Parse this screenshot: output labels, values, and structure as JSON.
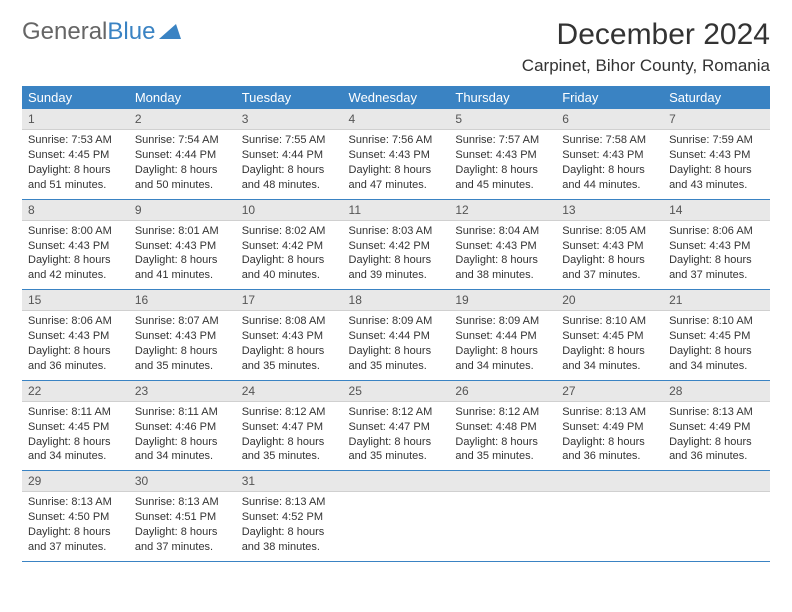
{
  "logo": {
    "text1": "General",
    "text2": "Blue"
  },
  "title": "December 2024",
  "location": "Carpinet, Bihor County, Romania",
  "colors": {
    "header_bg": "#3a83c3",
    "header_fg": "#ffffff",
    "daynum_bg": "#e8e8e8",
    "row_divider": "#3a83c3",
    "page_bg": "#ffffff",
    "text": "#333333"
  },
  "weekdays": [
    "Sunday",
    "Monday",
    "Tuesday",
    "Wednesday",
    "Thursday",
    "Friday",
    "Saturday"
  ],
  "weeks": [
    [
      {
        "n": "1",
        "sr": "Sunrise: 7:53 AM",
        "ss": "Sunset: 4:45 PM",
        "d1": "Daylight: 8 hours",
        "d2": "and 51 minutes."
      },
      {
        "n": "2",
        "sr": "Sunrise: 7:54 AM",
        "ss": "Sunset: 4:44 PM",
        "d1": "Daylight: 8 hours",
        "d2": "and 50 minutes."
      },
      {
        "n": "3",
        "sr": "Sunrise: 7:55 AM",
        "ss": "Sunset: 4:44 PM",
        "d1": "Daylight: 8 hours",
        "d2": "and 48 minutes."
      },
      {
        "n": "4",
        "sr": "Sunrise: 7:56 AM",
        "ss": "Sunset: 4:43 PM",
        "d1": "Daylight: 8 hours",
        "d2": "and 47 minutes."
      },
      {
        "n": "5",
        "sr": "Sunrise: 7:57 AM",
        "ss": "Sunset: 4:43 PM",
        "d1": "Daylight: 8 hours",
        "d2": "and 45 minutes."
      },
      {
        "n": "6",
        "sr": "Sunrise: 7:58 AM",
        "ss": "Sunset: 4:43 PM",
        "d1": "Daylight: 8 hours",
        "d2": "and 44 minutes."
      },
      {
        "n": "7",
        "sr": "Sunrise: 7:59 AM",
        "ss": "Sunset: 4:43 PM",
        "d1": "Daylight: 8 hours",
        "d2": "and 43 minutes."
      }
    ],
    [
      {
        "n": "8",
        "sr": "Sunrise: 8:00 AM",
        "ss": "Sunset: 4:43 PM",
        "d1": "Daylight: 8 hours",
        "d2": "and 42 minutes."
      },
      {
        "n": "9",
        "sr": "Sunrise: 8:01 AM",
        "ss": "Sunset: 4:43 PM",
        "d1": "Daylight: 8 hours",
        "d2": "and 41 minutes."
      },
      {
        "n": "10",
        "sr": "Sunrise: 8:02 AM",
        "ss": "Sunset: 4:42 PM",
        "d1": "Daylight: 8 hours",
        "d2": "and 40 minutes."
      },
      {
        "n": "11",
        "sr": "Sunrise: 8:03 AM",
        "ss": "Sunset: 4:42 PM",
        "d1": "Daylight: 8 hours",
        "d2": "and 39 minutes."
      },
      {
        "n": "12",
        "sr": "Sunrise: 8:04 AM",
        "ss": "Sunset: 4:43 PM",
        "d1": "Daylight: 8 hours",
        "d2": "and 38 minutes."
      },
      {
        "n": "13",
        "sr": "Sunrise: 8:05 AM",
        "ss": "Sunset: 4:43 PM",
        "d1": "Daylight: 8 hours",
        "d2": "and 37 minutes."
      },
      {
        "n": "14",
        "sr": "Sunrise: 8:06 AM",
        "ss": "Sunset: 4:43 PM",
        "d1": "Daylight: 8 hours",
        "d2": "and 37 minutes."
      }
    ],
    [
      {
        "n": "15",
        "sr": "Sunrise: 8:06 AM",
        "ss": "Sunset: 4:43 PM",
        "d1": "Daylight: 8 hours",
        "d2": "and 36 minutes."
      },
      {
        "n": "16",
        "sr": "Sunrise: 8:07 AM",
        "ss": "Sunset: 4:43 PM",
        "d1": "Daylight: 8 hours",
        "d2": "and 35 minutes."
      },
      {
        "n": "17",
        "sr": "Sunrise: 8:08 AM",
        "ss": "Sunset: 4:43 PM",
        "d1": "Daylight: 8 hours",
        "d2": "and 35 minutes."
      },
      {
        "n": "18",
        "sr": "Sunrise: 8:09 AM",
        "ss": "Sunset: 4:44 PM",
        "d1": "Daylight: 8 hours",
        "d2": "and 35 minutes."
      },
      {
        "n": "19",
        "sr": "Sunrise: 8:09 AM",
        "ss": "Sunset: 4:44 PM",
        "d1": "Daylight: 8 hours",
        "d2": "and 34 minutes."
      },
      {
        "n": "20",
        "sr": "Sunrise: 8:10 AM",
        "ss": "Sunset: 4:45 PM",
        "d1": "Daylight: 8 hours",
        "d2": "and 34 minutes."
      },
      {
        "n": "21",
        "sr": "Sunrise: 8:10 AM",
        "ss": "Sunset: 4:45 PM",
        "d1": "Daylight: 8 hours",
        "d2": "and 34 minutes."
      }
    ],
    [
      {
        "n": "22",
        "sr": "Sunrise: 8:11 AM",
        "ss": "Sunset: 4:45 PM",
        "d1": "Daylight: 8 hours",
        "d2": "and 34 minutes."
      },
      {
        "n": "23",
        "sr": "Sunrise: 8:11 AM",
        "ss": "Sunset: 4:46 PM",
        "d1": "Daylight: 8 hours",
        "d2": "and 34 minutes."
      },
      {
        "n": "24",
        "sr": "Sunrise: 8:12 AM",
        "ss": "Sunset: 4:47 PM",
        "d1": "Daylight: 8 hours",
        "d2": "and 35 minutes."
      },
      {
        "n": "25",
        "sr": "Sunrise: 8:12 AM",
        "ss": "Sunset: 4:47 PM",
        "d1": "Daylight: 8 hours",
        "d2": "and 35 minutes."
      },
      {
        "n": "26",
        "sr": "Sunrise: 8:12 AM",
        "ss": "Sunset: 4:48 PM",
        "d1": "Daylight: 8 hours",
        "d2": "and 35 minutes."
      },
      {
        "n": "27",
        "sr": "Sunrise: 8:13 AM",
        "ss": "Sunset: 4:49 PM",
        "d1": "Daylight: 8 hours",
        "d2": "and 36 minutes."
      },
      {
        "n": "28",
        "sr": "Sunrise: 8:13 AM",
        "ss": "Sunset: 4:49 PM",
        "d1": "Daylight: 8 hours",
        "d2": "and 36 minutes."
      }
    ],
    [
      {
        "n": "29",
        "sr": "Sunrise: 8:13 AM",
        "ss": "Sunset: 4:50 PM",
        "d1": "Daylight: 8 hours",
        "d2": "and 37 minutes."
      },
      {
        "n": "30",
        "sr": "Sunrise: 8:13 AM",
        "ss": "Sunset: 4:51 PM",
        "d1": "Daylight: 8 hours",
        "d2": "and 37 minutes."
      },
      {
        "n": "31",
        "sr": "Sunrise: 8:13 AM",
        "ss": "Sunset: 4:52 PM",
        "d1": "Daylight: 8 hours",
        "d2": "and 38 minutes."
      },
      {
        "empty": true
      },
      {
        "empty": true
      },
      {
        "empty": true
      },
      {
        "empty": true
      }
    ]
  ]
}
